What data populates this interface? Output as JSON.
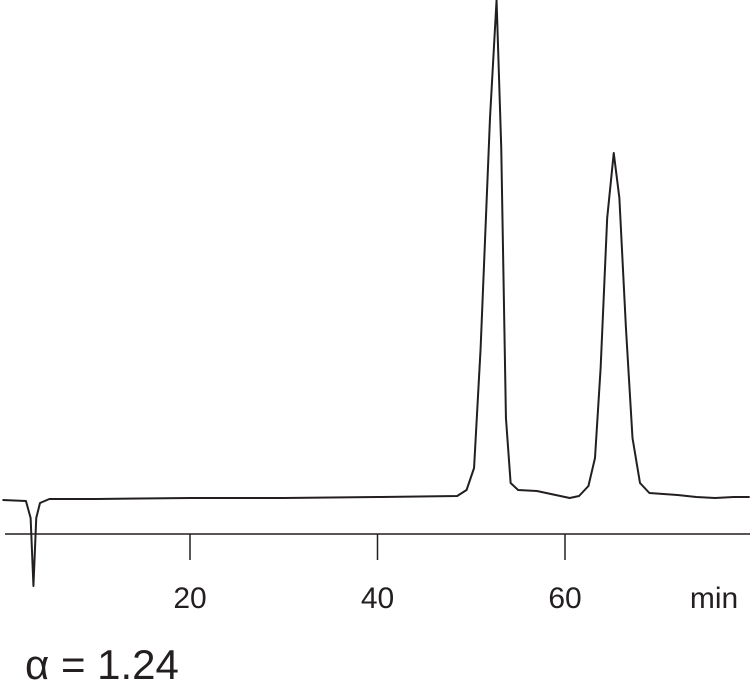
{
  "chart_data": {
    "type": "line",
    "x_label": "min",
    "annotation": "α = 1.24",
    "color": "#231f20",
    "x": [
      0,
      2.5,
      3.0,
      3.3,
      3.6,
      4.0,
      5,
      10,
      20,
      30,
      40,
      48.5,
      49.5,
      50.3,
      51,
      52,
      52.7,
      53.2,
      53.7,
      54.2,
      55,
      57,
      59,
      60.5,
      61.5,
      62.5,
      63.2,
      63.8,
      64.5,
      65.2,
      65.8,
      66.5,
      67.2,
      68,
      69,
      72,
      74,
      76,
      78,
      79.7
    ],
    "values": [
      -2,
      -3,
      -20,
      -88,
      -20,
      -5,
      -1,
      -1,
      0,
      0,
      1,
      2,
      8,
      30,
      150,
      380,
      498,
      350,
      80,
      15,
      8,
      7,
      3,
      0,
      2,
      12,
      40,
      130,
      280,
      345,
      300,
      170,
      60,
      15,
      5,
      3,
      1,
      0,
      1,
      1
    ],
    "xlim": [
      0,
      80
    ],
    "xticks": [
      20,
      40,
      60
    ],
    "ylim": [
      -90,
      498
    ]
  }
}
